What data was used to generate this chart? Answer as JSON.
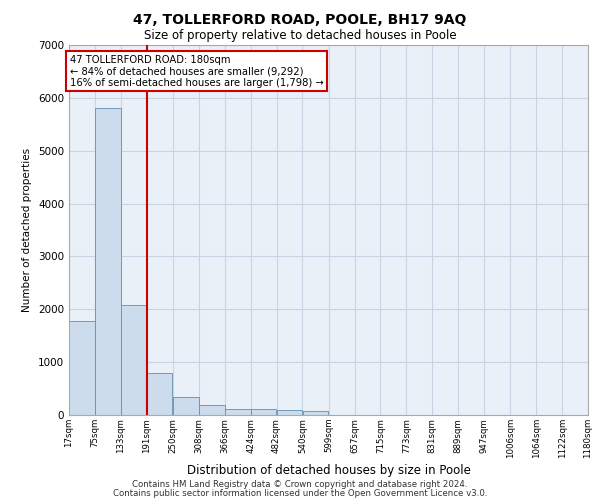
{
  "title": "47, TOLLERFORD ROAD, POOLE, BH17 9AQ",
  "subtitle": "Size of property relative to detached houses in Poole",
  "xlabel": "Distribution of detached houses by size in Poole",
  "ylabel": "Number of detached properties",
  "bar_color": "#ccdcec",
  "bar_edge_color": "#6090b0",
  "bin_edges": [
    17,
    75,
    133,
    191,
    250,
    308,
    366,
    424,
    482,
    540,
    599,
    657,
    715,
    773,
    831,
    889,
    947,
    1006,
    1064,
    1122,
    1180
  ],
  "bar_heights": [
    1780,
    5800,
    2090,
    800,
    340,
    190,
    120,
    110,
    100,
    70,
    0,
    0,
    0,
    0,
    0,
    0,
    0,
    0,
    0,
    0
  ],
  "red_line_x": 191,
  "red_line_color": "#cc0000",
  "annotation_line1": "47 TOLLERFORD ROAD: 180sqm",
  "annotation_line2": "← 84% of detached houses are smaller (9,292)",
  "annotation_line3": "16% of semi-detached houses are larger (1,798) →",
  "ylim": [
    0,
    7000
  ],
  "yticks": [
    0,
    1000,
    2000,
    3000,
    4000,
    5000,
    6000,
    7000
  ],
  "grid_color": "#c8d4e4",
  "background_color": "#eaf0f8",
  "footer_line1": "Contains HM Land Registry data © Crown copyright and database right 2024.",
  "footer_line2": "Contains public sector information licensed under the Open Government Licence v3.0.",
  "tick_labels": [
    "17sqm",
    "75sqm",
    "133sqm",
    "191sqm",
    "250sqm",
    "308sqm",
    "366sqm",
    "424sqm",
    "482sqm",
    "540sqm",
    "599sqm",
    "657sqm",
    "715sqm",
    "773sqm",
    "831sqm",
    "889sqm",
    "947sqm",
    "1006sqm",
    "1064sqm",
    "1122sqm",
    "1180sqm"
  ]
}
